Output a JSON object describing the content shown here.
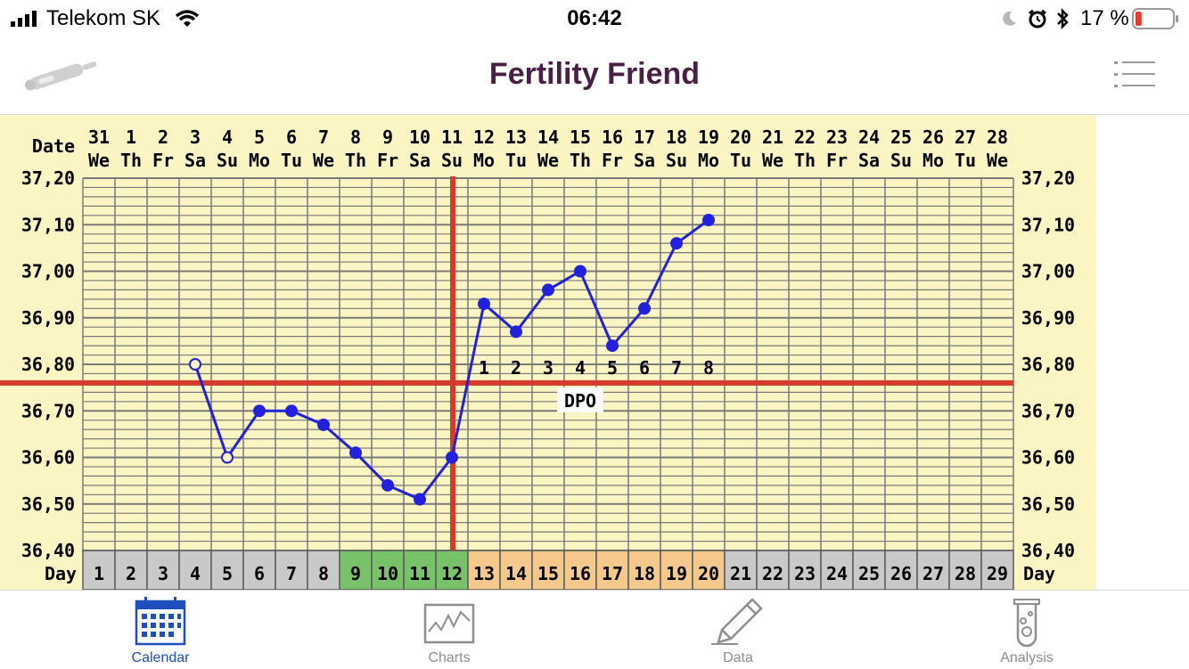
{
  "status_bar": {
    "carrier": "Telekom SK",
    "time": "06:42",
    "battery": "17 %",
    "battery_fraction": 0.17,
    "icons": [
      "signal-icon",
      "wifi-icon",
      "moon-icon",
      "alarm-icon",
      "bluetooth-icon",
      "battery-icon"
    ]
  },
  "nav": {
    "title": "Fertility Friend",
    "left_icon": "thermometer-icon",
    "right_icon": "menu-list-icon"
  },
  "chart_data": {
    "type": "line",
    "date_label": "Date",
    "day_label": "Day",
    "dpo_label": "DPO",
    "dates": [
      "31",
      "1",
      "2",
      "3",
      "4",
      "5",
      "6",
      "7",
      "8",
      "9",
      "10",
      "11",
      "12",
      "13",
      "14",
      "15",
      "16",
      "17",
      "18",
      "19",
      "20",
      "21",
      "22",
      "23",
      "24",
      "25",
      "26",
      "27",
      "28"
    ],
    "weekdays": [
      "We",
      "Th",
      "Fr",
      "Sa",
      "Su",
      "Mo",
      "Tu",
      "We",
      "Th",
      "Fr",
      "Sa",
      "Su",
      "Mo",
      "Tu",
      "We",
      "Th",
      "Fr",
      "Sa",
      "Su",
      "Mo",
      "Tu",
      "We",
      "Th",
      "Fr",
      "Sa",
      "Su",
      "Mo",
      "Tu",
      "We"
    ],
    "days": [
      "1",
      "2",
      "3",
      "4",
      "5",
      "6",
      "7",
      "8",
      "9",
      "10",
      "11",
      "12",
      "13",
      "14",
      "15",
      "16",
      "17",
      "18",
      "19",
      "20",
      "21",
      "22",
      "23",
      "24",
      "25",
      "26",
      "27",
      "28",
      "29"
    ],
    "fertile_days": [
      9,
      10,
      11,
      12
    ],
    "luteal_days": [
      13,
      14,
      15,
      16,
      17,
      18,
      19,
      20
    ],
    "y_ticks": [
      "37,20",
      "37,10",
      "37,00",
      "36,90",
      "36,80",
      "36,70",
      "36,60",
      "36,50",
      "36,40"
    ],
    "ylim": [
      36.4,
      37.2
    ],
    "cover_line": 36.76,
    "ovulation_day": 12,
    "dpo_numbers": [
      "1",
      "2",
      "3",
      "4",
      "5",
      "6",
      "7",
      "8"
    ],
    "series": [
      {
        "values": [
          {
            "day": 4,
            "temp": 36.8,
            "open": true
          },
          {
            "day": 5,
            "temp": 36.6,
            "open": true
          },
          {
            "day": 6,
            "temp": 36.7,
            "open": false
          },
          {
            "day": 7,
            "temp": 36.7,
            "open": false
          },
          {
            "day": 8,
            "temp": 36.67,
            "open": false
          },
          {
            "day": 9,
            "temp": 36.61,
            "open": false
          },
          {
            "day": 10,
            "temp": 36.54,
            "open": false
          },
          {
            "day": 11,
            "temp": 36.51,
            "open": false
          },
          {
            "day": 12,
            "temp": 36.6,
            "open": false
          },
          {
            "day": 13,
            "temp": 36.93,
            "open": false
          },
          {
            "day": 14,
            "temp": 36.87,
            "open": false
          },
          {
            "day": 15,
            "temp": 36.96,
            "open": false
          },
          {
            "day": 16,
            "temp": 37.0,
            "open": false
          },
          {
            "day": 17,
            "temp": 36.84,
            "open": false
          },
          {
            "day": 18,
            "temp": 36.92,
            "open": false
          },
          {
            "day": 19,
            "temp": 37.06,
            "open": false
          },
          {
            "day": 20,
            "temp": 37.11,
            "open": false
          }
        ]
      }
    ],
    "colors": {
      "background": "#fbf4c3",
      "grid": "#7a7a7a",
      "line": "#2222dd",
      "cover": "#d63a2a",
      "day_default": "#c9c9c9",
      "day_fertile": "#78c26a",
      "day_luteal": "#f5c98c"
    }
  },
  "tabs": [
    {
      "label": "Calendar",
      "icon": "calendar-icon",
      "active": true
    },
    {
      "label": "Charts",
      "icon": "chart-line-icon",
      "active": false
    },
    {
      "label": "Data",
      "icon": "pencil-icon",
      "active": false
    },
    {
      "label": "Analysis",
      "icon": "test-tube-icon",
      "active": false
    }
  ]
}
